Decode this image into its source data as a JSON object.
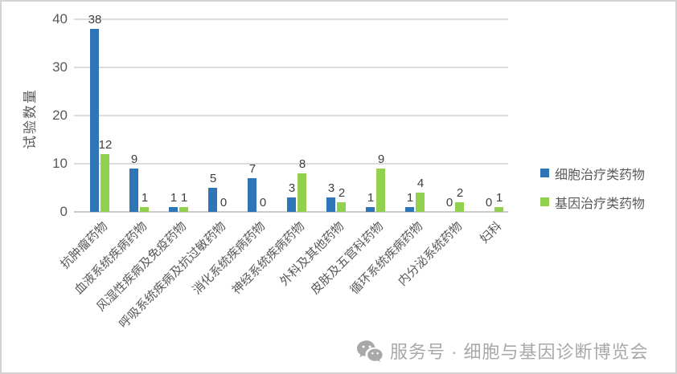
{
  "watermark": {
    "text": "服务号 · 细胞与基因诊断博览会",
    "icon": "wechat-icon",
    "color": "#a8a8a8"
  },
  "colors": {
    "grid": "#dddddd",
    "axis_text": "#595959",
    "data_label": "#404040",
    "frame_border": "#d4d2d2",
    "background": "#ffffff"
  },
  "chart_data": {
    "type": "bar",
    "title": "",
    "xlabel": "",
    "ylabel": "试验数量",
    "ylim": [
      0,
      40
    ],
    "yticks": [
      0,
      10,
      20,
      30,
      40
    ],
    "grid": true,
    "data_labels": true,
    "legend_position": "right",
    "categories": [
      "抗肿瘤药物",
      "血液系统疾病药物",
      "风湿性疾病及免疫药物",
      "呼吸系统疾病及抗过敏药物",
      "消化系统疾病药物",
      "神经系统疾病药物",
      "外科及其他药物",
      "皮肤及五官科药物",
      "循环系统疾病药物",
      "内分泌系统药物",
      "妇科"
    ],
    "series": [
      {
        "name": "细胞治疗类药物",
        "color": "#2e75b6",
        "values": [
          38,
          9,
          1,
          5,
          7,
          3,
          3,
          1,
          1,
          0,
          0
        ]
      },
      {
        "name": "基因治疗类药物",
        "color": "#92d050",
        "values": [
          12,
          1,
          1,
          0,
          0,
          8,
          2,
          9,
          4,
          2,
          1
        ]
      }
    ]
  }
}
